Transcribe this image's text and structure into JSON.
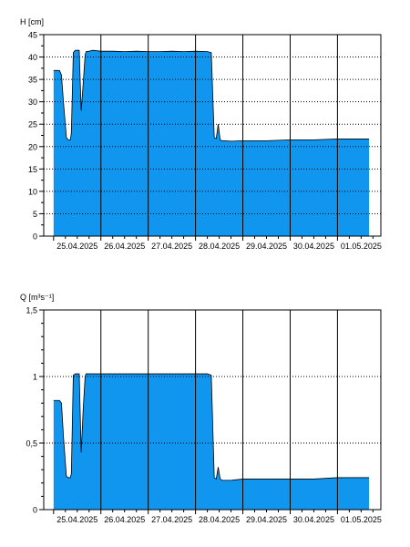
{
  "colors": {
    "fill": "#1196F0",
    "stroke": "#000000",
    "grid": "#000000",
    "background": "#ffffff"
  },
  "chart_data": [
    {
      "type": "area",
      "ylabel": "H [cm]",
      "ylim": [
        0,
        45
      ],
      "y_ticks": [
        "0",
        "5",
        "10",
        "15",
        "20",
        "25",
        "30",
        "35",
        "40",
        "45"
      ],
      "y_tick_values": [
        0,
        5,
        10,
        15,
        20,
        25,
        30,
        35,
        40,
        45
      ],
      "xlim": [
        "2025-04-24T19:00",
        "2025-05-01T22:00"
      ],
      "x_ticks": [
        "2025-04-25T12:00",
        "2025-04-26T12:00",
        "2025-04-27T12:00",
        "2025-04-28T12:00",
        "2025-04-29T12:00",
        "2025-04-30T12:00",
        "2025-05-01T12:00"
      ],
      "x_tick_labels": [
        "25.04.2025",
        "26.04.2025",
        "27.04.2025",
        "28.04.2025",
        "29.04.2025",
        "30.04.2025",
        "01.05.2025"
      ],
      "vlines": [
        "2025-04-26T00:00",
        "2025-04-27T00:00",
        "2025-04-28T00:00",
        "2025-04-29T00:00",
        "2025-04-30T00:00",
        "2025-05-01T00:00"
      ],
      "hgrid": true,
      "x": [
        "2025-04-25T00:00",
        "2025-04-25T03:00",
        "2025-04-25T04:00",
        "2025-04-25T05:00",
        "2025-04-25T06:30",
        "2025-04-25T07:30",
        "2025-04-25T08:30",
        "2025-04-25T09:00",
        "2025-04-25T10:00",
        "2025-04-25T11:00",
        "2025-04-25T13:00",
        "2025-04-25T14:00",
        "2025-04-25T15:00",
        "2025-04-25T16:00",
        "2025-04-25T16:30",
        "2025-04-25T18:00",
        "2025-04-25T20:00",
        "2025-04-26T00:00",
        "2025-04-26T06:00",
        "2025-04-26T12:00",
        "2025-04-26T18:00",
        "2025-04-27T00:00",
        "2025-04-27T06:00",
        "2025-04-27T12:00",
        "2025-04-27T18:00",
        "2025-04-28T00:00",
        "2025-04-28T06:00",
        "2025-04-28T08:00",
        "2025-04-28T09:30",
        "2025-04-28T10:30",
        "2025-04-28T11:30",
        "2025-04-28T12:30",
        "2025-04-28T13:30",
        "2025-04-28T15:00",
        "2025-04-28T18:00",
        "2025-04-29T00:00",
        "2025-04-29T12:00",
        "2025-04-30T00:00",
        "2025-04-30T12:00",
        "2025-05-01T00:00",
        "2025-05-01T12:00",
        "2025-05-01T16:00"
      ],
      "values": [
        37.0,
        37.0,
        36.0,
        30.0,
        22.0,
        21.5,
        21.5,
        23.0,
        41.0,
        41.5,
        41.5,
        28.0,
        34.0,
        40.5,
        41.2,
        41.3,
        41.5,
        41.3,
        41.3,
        41.2,
        41.3,
        41.2,
        41.2,
        41.3,
        41.2,
        41.3,
        41.2,
        41.0,
        22.0,
        21.8,
        25.0,
        21.5,
        21.3,
        21.3,
        21.2,
        21.3,
        21.3,
        21.5,
        21.5,
        21.7,
        21.7,
        21.7
      ]
    },
    {
      "type": "area",
      "ylabel": "Q [m³s⁻¹]",
      "ylim": [
        0,
        1.5
      ],
      "y_ticks": [
        "0",
        "0,5",
        "1",
        "1,5"
      ],
      "y_tick_values": [
        0,
        0.5,
        1,
        1.5
      ],
      "y_minor_step": 0.1,
      "xlim": [
        "2025-04-24T19:00",
        "2025-05-01T22:00"
      ],
      "x_ticks": [
        "2025-04-25T12:00",
        "2025-04-26T12:00",
        "2025-04-27T12:00",
        "2025-04-28T12:00",
        "2025-04-29T12:00",
        "2025-04-30T12:00",
        "2025-05-01T12:00"
      ],
      "x_tick_labels": [
        "25.04.2025",
        "26.04.2025",
        "27.04.2025",
        "28.04.2025",
        "29.04.2025",
        "30.04.2025",
        "01.05.2025"
      ],
      "vlines": [
        "2025-04-26T00:00",
        "2025-04-27T00:00",
        "2025-04-28T00:00",
        "2025-04-29T00:00",
        "2025-04-30T00:00",
        "2025-05-01T00:00"
      ],
      "hgrid": true,
      "x": [
        "2025-04-25T00:00",
        "2025-04-25T03:00",
        "2025-04-25T04:00",
        "2025-04-25T05:00",
        "2025-04-25T06:30",
        "2025-04-25T07:30",
        "2025-04-25T08:30",
        "2025-04-25T09:00",
        "2025-04-25T10:00",
        "2025-04-25T11:00",
        "2025-04-25T13:00",
        "2025-04-25T14:00",
        "2025-04-25T15:00",
        "2025-04-25T16:00",
        "2025-04-25T16:30",
        "2025-04-25T18:00",
        "2025-04-25T20:00",
        "2025-04-26T00:00",
        "2025-04-26T06:00",
        "2025-04-26T12:00",
        "2025-04-26T18:00",
        "2025-04-27T00:00",
        "2025-04-27T06:00",
        "2025-04-27T12:00",
        "2025-04-27T18:00",
        "2025-04-28T00:00",
        "2025-04-28T06:00",
        "2025-04-28T08:00",
        "2025-04-28T09:30",
        "2025-04-28T10:30",
        "2025-04-28T11:30",
        "2025-04-28T12:30",
        "2025-04-28T13:30",
        "2025-04-28T15:00",
        "2025-04-28T18:00",
        "2025-04-29T00:00",
        "2025-04-29T12:00",
        "2025-04-30T00:00",
        "2025-04-30T12:00",
        "2025-05-01T00:00",
        "2025-05-01T12:00",
        "2025-05-01T16:00"
      ],
      "values": [
        0.82,
        0.82,
        0.8,
        0.55,
        0.25,
        0.24,
        0.24,
        0.27,
        1.01,
        1.02,
        1.02,
        0.43,
        0.75,
        1.0,
        1.02,
        1.02,
        1.02,
        1.02,
        1.02,
        1.02,
        1.02,
        1.02,
        1.02,
        1.02,
        1.02,
        1.02,
        1.02,
        1.01,
        0.24,
        0.23,
        0.32,
        0.23,
        0.22,
        0.22,
        0.22,
        0.23,
        0.23,
        0.23,
        0.23,
        0.24,
        0.24,
        0.24
      ]
    }
  ]
}
